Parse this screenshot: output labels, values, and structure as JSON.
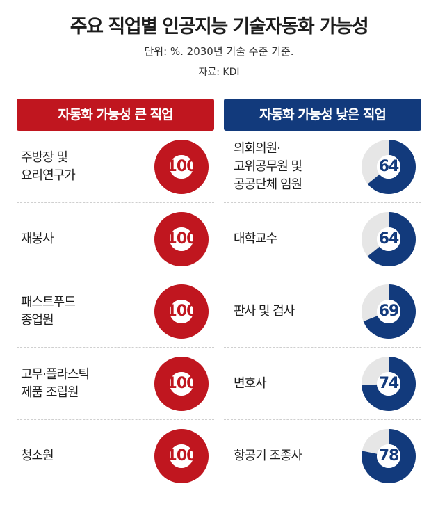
{
  "title": "주요 직업별 인공지능 기술자동화 가능성",
  "subtitle": "단위: %. 2030년 기술 수준 기준.",
  "source": "자료: KDI",
  "colors": {
    "high": "#c0161f",
    "low": "#123a7c",
    "track": "#e6e6e6"
  },
  "chart_data": {
    "type": "donut",
    "unit": "%",
    "groups": [
      {
        "key": "high",
        "label": "자동화 가능성 큰 직업",
        "items": [
          {
            "label": "주방장 및\n요리연구가",
            "value": 100
          },
          {
            "label": "재봉사",
            "value": 100
          },
          {
            "label": "패스트푸드\n종업원",
            "value": 100
          },
          {
            "label": "고무·플라스틱\n제품 조립원",
            "value": 100
          },
          {
            "label": "청소원",
            "value": 100
          }
        ]
      },
      {
        "key": "low",
        "label": "자동화 가능성 낮은 직업",
        "items": [
          {
            "label": "의회의원·\n고위공무원 및\n공공단체 임원",
            "value": 64
          },
          {
            "label": "대학교수",
            "value": 64
          },
          {
            "label": "판사 및 검사",
            "value": 69
          },
          {
            "label": "변호사",
            "value": 74
          },
          {
            "label": "항공기 조종사",
            "value": 78
          }
        ]
      }
    ]
  }
}
